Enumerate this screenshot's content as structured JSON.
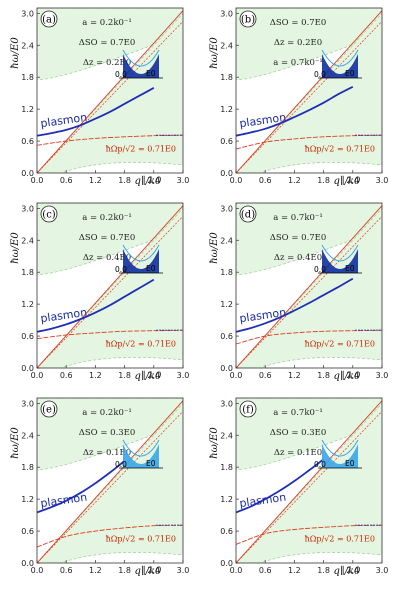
{
  "figure": {
    "xlabel": "q∥/k0",
    "ylabel": "ħω/E0",
    "xticks": [
      "0.0",
      "0.6",
      "1.2",
      "1.8",
      "2.4",
      "3.0"
    ],
    "yticks": [
      "0.0",
      "0.6",
      "1.2",
      "1.8",
      "2.4",
      "3.0"
    ],
    "plasmon_label": "plasmon",
    "flat_mode_label": "ħΩp/√2 = 0.71E0",
    "inset_label_left": "0.0",
    "inset_label_right": "E0",
    "colors": {
      "plasmon": "#1f2fb5",
      "light": "#e03a1e",
      "region": "#e4f6e1",
      "region_edge": "#9acd93",
      "inset_dark": "#1030a0",
      "inset_light": "#3aa6e8"
    }
  },
  "chart_data": [
    {
      "panel": "(a)",
      "type": "line",
      "xlim": [
        0,
        3
      ],
      "ylim": [
        0,
        3.1
      ],
      "params": [
        "a = 0.2k0⁻¹",
        "ΔSO = 0.7E0",
        "Δz = 0.2E0"
      ],
      "series": [
        {
          "name": "plasmon",
          "x": [
            0.0,
            0.3,
            0.6,
            0.9,
            1.2,
            1.5,
            1.8,
            2.1,
            2.4
          ],
          "y": [
            0.7,
            0.75,
            0.81,
            0.9,
            1.02,
            1.15,
            1.3,
            1.45,
            1.6
          ]
        },
        {
          "name": "ħΩp/√2 = 0.71E0",
          "x": [
            0.0,
            0.6,
            1.2,
            1.8,
            2.4,
            3.0
          ],
          "y": [
            0.52,
            0.6,
            0.65,
            0.68,
            0.7,
            0.71
          ]
        }
      ]
    },
    {
      "panel": "(b)",
      "type": "line",
      "xlim": [
        0,
        3
      ],
      "ylim": [
        0,
        3.1
      ],
      "params": [
        "ΔSO = 0.7E0",
        "Δz = 0.2E0",
        "a = 0.7k0⁻¹"
      ],
      "series": [
        {
          "name": "plasmon",
          "x": [
            0.0,
            0.3,
            0.6,
            0.9,
            1.2,
            1.5,
            1.8,
            2.1,
            2.4
          ],
          "y": [
            0.7,
            0.76,
            0.83,
            0.93,
            1.05,
            1.18,
            1.32,
            1.48,
            1.62
          ]
        },
        {
          "name": "ħΩp/√2 = 0.71E0",
          "x": [
            0.0,
            0.6,
            1.2,
            1.8,
            2.4,
            3.0
          ],
          "y": [
            0.45,
            0.58,
            0.64,
            0.68,
            0.7,
            0.71
          ]
        }
      ]
    },
    {
      "panel": "(c)",
      "type": "line",
      "xlim": [
        0,
        3
      ],
      "ylim": [
        0,
        3.1
      ],
      "params": [
        "a = 0.2k0⁻¹",
        "ΔSO = 0.7E0",
        "Δz = 0.4E0"
      ],
      "series": [
        {
          "name": "plasmon",
          "x": [
            0.0,
            0.3,
            0.6,
            0.9,
            1.2,
            1.5,
            1.8,
            2.1,
            2.4
          ],
          "y": [
            0.68,
            0.74,
            0.82,
            0.92,
            1.04,
            1.18,
            1.34,
            1.5,
            1.66
          ]
        },
        {
          "name": "ħΩp/√2 = 0.71E0",
          "x": [
            0.0,
            0.6,
            1.2,
            1.8,
            2.4,
            3.0
          ],
          "y": [
            0.55,
            0.62,
            0.66,
            0.69,
            0.7,
            0.71
          ]
        }
      ]
    },
    {
      "panel": "(d)",
      "type": "line",
      "xlim": [
        0,
        3
      ],
      "ylim": [
        0,
        3.1
      ],
      "params": [
        "a = 0.7k0⁻¹",
        "ΔSO = 0.7E0",
        "Δz = 0.4E0"
      ],
      "series": [
        {
          "name": "plasmon",
          "x": [
            0.0,
            0.3,
            0.6,
            0.9,
            1.2,
            1.5,
            1.8,
            2.1,
            2.4
          ],
          "y": [
            0.68,
            0.75,
            0.84,
            0.95,
            1.08,
            1.22,
            1.37,
            1.52,
            1.68
          ]
        },
        {
          "name": "ħΩp/√2 = 0.71E0",
          "x": [
            0.0,
            0.6,
            1.2,
            1.8,
            2.4,
            3.0
          ],
          "y": [
            0.45,
            0.6,
            0.66,
            0.69,
            0.7,
            0.71
          ]
        }
      ]
    },
    {
      "panel": "(e)",
      "type": "line",
      "xlim": [
        0,
        3
      ],
      "ylim": [
        0,
        3.1
      ],
      "params": [
        "a = 0.2k0⁻¹",
        "ΔSO = 0.3E0",
        "Δz = 0.1E0"
      ],
      "series": [
        {
          "name": "plasmon",
          "x": [
            0.0,
            0.3,
            0.6,
            0.9,
            1.2,
            1.5,
            1.8
          ],
          "y": [
            0.95,
            1.05,
            1.17,
            1.32,
            1.5,
            1.7,
            1.92
          ]
        },
        {
          "name": "ħΩp/√2 = 0.71E0",
          "x": [
            0.0,
            0.6,
            1.2,
            1.8,
            2.4,
            3.0
          ],
          "y": [
            0.3,
            0.5,
            0.6,
            0.66,
            0.7,
            0.71
          ]
        }
      ]
    },
    {
      "panel": "(f)",
      "type": "line",
      "xlim": [
        0,
        3
      ],
      "ylim": [
        0,
        3.1
      ],
      "params": [
        "a = 0.7k0⁻¹",
        "ΔSO = 0.3E0",
        "Δz = 0.1E0"
      ],
      "series": [
        {
          "name": "plasmon",
          "x": [
            0.0,
            0.3,
            0.6,
            0.9,
            1.2,
            1.5,
            1.8
          ],
          "y": [
            0.95,
            1.06,
            1.2,
            1.36,
            1.54,
            1.74,
            1.95
          ]
        },
        {
          "name": "ħΩp/√2 = 0.71E0",
          "x": [
            0.0,
            0.6,
            1.2,
            1.8,
            2.4,
            3.0
          ],
          "y": [
            0.35,
            0.55,
            0.63,
            0.67,
            0.7,
            0.71
          ]
        }
      ]
    }
  ]
}
